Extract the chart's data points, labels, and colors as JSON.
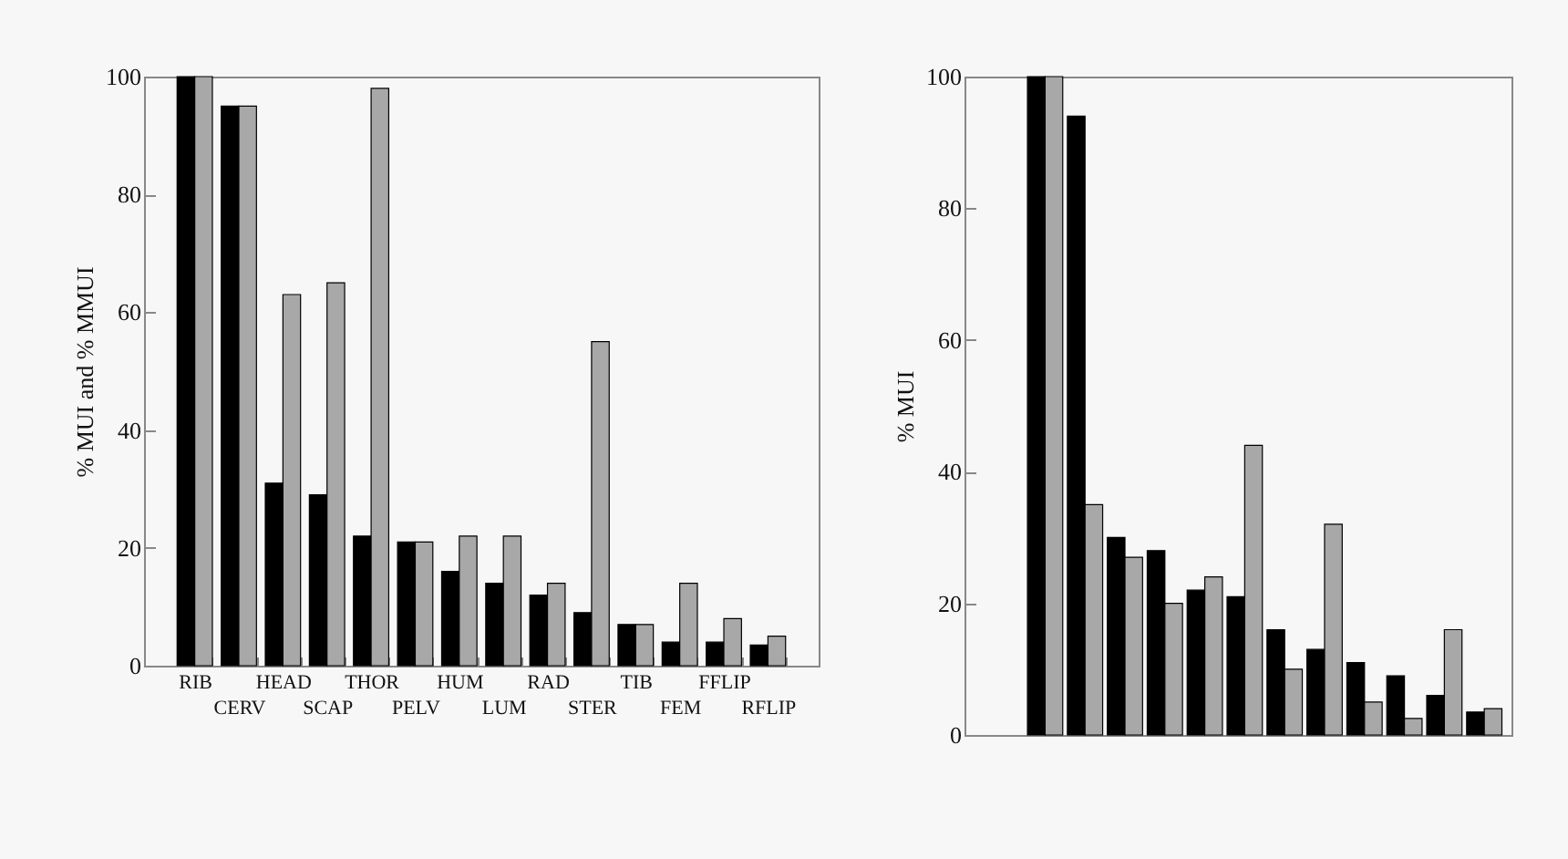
{
  "chart_data": [
    {
      "type": "bar",
      "ylabel": "% MUI and % MMUI",
      "categories": [
        "RIB",
        "CERV",
        "HEAD",
        "SCAP",
        "THOR",
        "PELV",
        "HUM",
        "LUM",
        "RAD",
        "STER",
        "TIB",
        "FEM",
        "FFLIP",
        "RFLIP"
      ],
      "series": [
        {
          "color": "#000000",
          "values": [
            100,
            95,
            31,
            29,
            22,
            21,
            16,
            14,
            12,
            9,
            7,
            4,
            4,
            3.5
          ]
        },
        {
          "color": "#a8a8a8",
          "values": [
            100,
            95,
            63,
            65,
            98,
            21,
            22,
            22,
            14,
            55,
            7,
            14,
            8,
            5
          ]
        }
      ],
      "ylim": [
        0,
        100
      ],
      "yticks": [
        0,
        20,
        40,
        60,
        80,
        100
      ],
      "grid": false,
      "legend": false
    },
    {
      "type": "bar",
      "ylabel": "% MUI",
      "categories": [
        null,
        null,
        null,
        null,
        null,
        null,
        null,
        null,
        null,
        null,
        null,
        null
      ],
      "series": [
        {
          "color": "#000000",
          "values": [
            100,
            94,
            30,
            28,
            22,
            21,
            16,
            13,
            11,
            9,
            6,
            3.5
          ]
        },
        {
          "color": "#a8a8a8",
          "values": [
            100,
            35,
            27,
            20,
            24,
            44,
            10,
            32,
            5,
            2.5,
            16,
            4
          ]
        }
      ],
      "ylim": [
        0,
        100
      ],
      "yticks": [
        0,
        20,
        40,
        60,
        80,
        100
      ],
      "grid": false,
      "legend": false,
      "tick_labels": "y"
    }
  ]
}
